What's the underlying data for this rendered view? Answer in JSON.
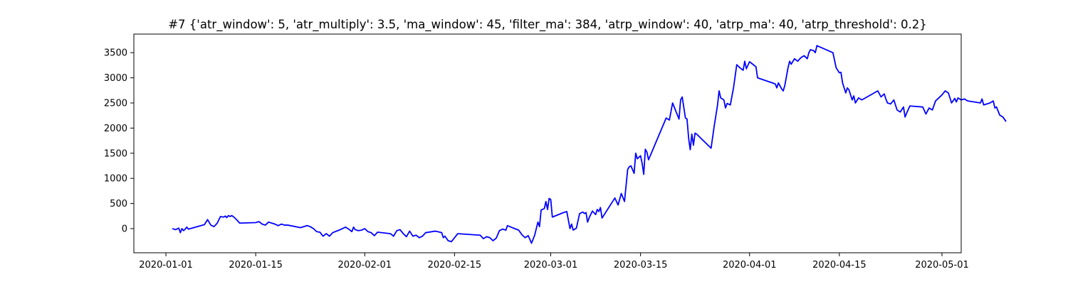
{
  "chart_data": {
    "type": "line",
    "title": "#7 {'atr_window': 5, 'atr_multiply': 3.5, 'ma_window': 45, 'filter_ma': 384, 'atrp_window': 40, 'atrp_ma': 40, 'atrp_threshold': 0.2}",
    "xlabel": "",
    "ylabel": "",
    "xlim": [
      "2019-12-27",
      "2020-05-04"
    ],
    "ylim": [
      -480,
      3870
    ],
    "x_ticks": [
      "2020-01-01",
      "2020-01-15",
      "2020-02-01",
      "2020-02-15",
      "2020-03-01",
      "2020-03-15",
      "2020-04-01",
      "2020-04-15",
      "2020-05-01"
    ],
    "y_ticks": [
      0,
      500,
      1000,
      1500,
      2000,
      2500,
      3000,
      3500
    ],
    "grid": false,
    "legend": "none",
    "series": [
      {
        "color": "#0000ff",
        "points": [
          [
            "2020-01-02",
            0
          ],
          [
            "2020-01-02T12:00",
            -20
          ],
          [
            "2020-01-03",
            10
          ],
          [
            "2020-01-03T06:00",
            -80
          ],
          [
            "2020-01-03T12:00",
            0
          ],
          [
            "2020-01-03T18:00",
            -40
          ],
          [
            "2020-01-04",
            -10
          ],
          [
            "2020-01-04T06:00",
            30
          ],
          [
            "2020-01-04T12:00",
            -10
          ],
          [
            "2020-01-07",
            80
          ],
          [
            "2020-01-07T12:00",
            180
          ],
          [
            "2020-01-08",
            70
          ],
          [
            "2020-01-08T12:00",
            40
          ],
          [
            "2020-01-09",
            110
          ],
          [
            "2020-01-09T12:00",
            240
          ],
          [
            "2020-01-10",
            230
          ],
          [
            "2020-01-10T06:00",
            250
          ],
          [
            "2020-01-10T12:00",
            220
          ],
          [
            "2020-01-10T18:00",
            260
          ],
          [
            "2020-01-11",
            240
          ],
          [
            "2020-01-11T06:00",
            260
          ],
          [
            "2020-01-11T12:00",
            240
          ],
          [
            "2020-01-12",
            180
          ],
          [
            "2020-01-12T12:00",
            110
          ],
          [
            "2020-01-15",
            120
          ],
          [
            "2020-01-15T12:00",
            140
          ],
          [
            "2020-01-16",
            90
          ],
          [
            "2020-01-16T12:00",
            70
          ],
          [
            "2020-01-17",
            130
          ],
          [
            "2020-01-17T12:00",
            110
          ],
          [
            "2020-01-18",
            90
          ],
          [
            "2020-01-18T12:00",
            60
          ],
          [
            "2020-01-19",
            90
          ],
          [
            "2020-01-19T12:00",
            70
          ],
          [
            "2020-01-20",
            70
          ],
          [
            "2020-01-22",
            20
          ],
          [
            "2020-01-23",
            60
          ],
          [
            "2020-01-23T12:00",
            40
          ],
          [
            "2020-01-24",
            0
          ],
          [
            "2020-01-24T12:00",
            -60
          ],
          [
            "2020-01-25",
            -70
          ],
          [
            "2020-01-25T12:00",
            -150
          ],
          [
            "2020-01-26",
            -100
          ],
          [
            "2020-01-26T12:00",
            -150
          ],
          [
            "2020-01-27",
            -80
          ],
          [
            "2020-01-28",
            -30
          ],
          [
            "2020-01-28T12:00",
            0
          ],
          [
            "2020-01-29",
            30
          ],
          [
            "2020-01-29T12:00",
            -10
          ],
          [
            "2020-01-30",
            -60
          ],
          [
            "2020-01-30T06:00",
            30
          ],
          [
            "2020-01-30T12:00",
            -20
          ],
          [
            "2020-01-31",
            -40
          ],
          [
            "2020-01-31T12:00",
            -30
          ],
          [
            "2020-02-01",
            0
          ],
          [
            "2020-02-01T12:00",
            -60
          ],
          [
            "2020-02-02",
            -80
          ],
          [
            "2020-02-02T12:00",
            -140
          ],
          [
            "2020-02-03",
            -70
          ],
          [
            "2020-02-05",
            -100
          ],
          [
            "2020-02-05T12:00",
            -150
          ],
          [
            "2020-02-06",
            -40
          ],
          [
            "2020-02-06T12:00",
            -20
          ],
          [
            "2020-02-07",
            -100
          ],
          [
            "2020-02-07T12:00",
            -160
          ],
          [
            "2020-02-08",
            -50
          ],
          [
            "2020-02-08T12:00",
            -150
          ],
          [
            "2020-02-09",
            -130
          ],
          [
            "2020-02-09T12:00",
            -180
          ],
          [
            "2020-02-10",
            -150
          ],
          [
            "2020-02-10T12:00",
            -80
          ],
          [
            "2020-02-12",
            -50
          ],
          [
            "2020-02-13",
            -80
          ],
          [
            "2020-02-13T06:00",
            -180
          ],
          [
            "2020-02-13T12:00",
            -150
          ],
          [
            "2020-02-14",
            -240
          ],
          [
            "2020-02-14T12:00",
            -260
          ],
          [
            "2020-02-15",
            -180
          ],
          [
            "2020-02-15T12:00",
            -100
          ],
          [
            "2020-02-19",
            -130
          ],
          [
            "2020-02-19T12:00",
            -200
          ],
          [
            "2020-02-20",
            -160
          ],
          [
            "2020-02-20T12:00",
            -180
          ],
          [
            "2020-02-21",
            -240
          ],
          [
            "2020-02-21T12:00",
            -190
          ],
          [
            "2020-02-22",
            -40
          ],
          [
            "2020-02-22T12:00",
            -10
          ],
          [
            "2020-02-23",
            -30
          ],
          [
            "2020-02-23T06:00",
            60
          ],
          [
            "2020-02-24",
            20
          ],
          [
            "2020-02-25",
            -30
          ],
          [
            "2020-02-25T12:00",
            -120
          ],
          [
            "2020-02-26",
            -180
          ],
          [
            "2020-02-26T12:00",
            -140
          ],
          [
            "2020-02-27",
            -290
          ],
          [
            "2020-02-27T12:00",
            -130
          ],
          [
            "2020-02-28",
            130
          ],
          [
            "2020-02-28T06:00",
            40
          ],
          [
            "2020-02-28T12:00",
            370
          ],
          [
            "2020-02-29",
            400
          ],
          [
            "2020-02-29T06:00",
            540
          ],
          [
            "2020-02-29T12:00",
            380
          ],
          [
            "2020-02-29T18:00",
            600
          ],
          [
            "2020-03-01",
            580
          ],
          [
            "2020-03-01T06:00",
            230
          ],
          [
            "2020-03-03",
            320
          ],
          [
            "2020-03-03T12:00",
            340
          ],
          [
            "2020-03-04",
            0
          ],
          [
            "2020-03-04T06:00",
            90
          ],
          [
            "2020-03-04T12:00",
            -30
          ],
          [
            "2020-03-05",
            10
          ],
          [
            "2020-03-05T12:00",
            300
          ],
          [
            "2020-03-06",
            330
          ],
          [
            "2020-03-06T06:00",
            300
          ],
          [
            "2020-03-06T12:00",
            320
          ],
          [
            "2020-03-06T18:00",
            130
          ],
          [
            "2020-03-07",
            220
          ],
          [
            "2020-03-07T12:00",
            350
          ],
          [
            "2020-03-08",
            280
          ],
          [
            "2020-03-08T06:00",
            380
          ],
          [
            "2020-03-08T12:00",
            340
          ],
          [
            "2020-03-08T18:00",
            420
          ],
          [
            "2020-03-09",
            210
          ],
          [
            "2020-03-11",
            610
          ],
          [
            "2020-03-11T12:00",
            470
          ],
          [
            "2020-03-12",
            700
          ],
          [
            "2020-03-12T12:00",
            540
          ],
          [
            "2020-03-13",
            1180
          ],
          [
            "2020-03-13T06:00",
            1230
          ],
          [
            "2020-03-13T12:00",
            1250
          ],
          [
            "2020-03-14",
            1100
          ],
          [
            "2020-03-14T06:00",
            1500
          ],
          [
            "2020-03-14T12:00",
            1390
          ],
          [
            "2020-03-15",
            1450
          ],
          [
            "2020-03-15T06:00",
            1300
          ],
          [
            "2020-03-15T12:00",
            1080
          ],
          [
            "2020-03-15T18:00",
            1580
          ],
          [
            "2020-03-16",
            1520
          ],
          [
            "2020-03-16T06:00",
            1370
          ],
          [
            "2020-03-19",
            2200
          ],
          [
            "2020-03-19T12:00",
            2160
          ],
          [
            "2020-03-20",
            2500
          ],
          [
            "2020-03-21",
            2180
          ],
          [
            "2020-03-21T06:00",
            2560
          ],
          [
            "2020-03-21T12:00",
            2620
          ],
          [
            "2020-03-22",
            2200
          ],
          [
            "2020-03-22T06:00",
            2180
          ],
          [
            "2020-03-22T12:00",
            1800
          ],
          [
            "2020-03-22T18:00",
            1570
          ],
          [
            "2020-03-23",
            1880
          ],
          [
            "2020-03-23T06:00",
            1660
          ],
          [
            "2020-03-23T12:00",
            1900
          ],
          [
            "2020-03-23T18:00",
            1880
          ],
          [
            "2020-03-26",
            1600
          ],
          [
            "2020-03-26T12:00",
            2050
          ],
          [
            "2020-03-27",
            2450
          ],
          [
            "2020-03-27T06:00",
            2740
          ],
          [
            "2020-03-27T12:00",
            2600
          ],
          [
            "2020-03-28",
            2560
          ],
          [
            "2020-03-28T06:00",
            2400
          ],
          [
            "2020-03-28T12:00",
            2490
          ],
          [
            "2020-03-29",
            2460
          ],
          [
            "2020-03-29T12:00",
            2800
          ],
          [
            "2020-03-30",
            3260
          ],
          [
            "2020-03-30T12:00",
            3200
          ],
          [
            "2020-03-31",
            3150
          ],
          [
            "2020-03-31T06:00",
            3330
          ],
          [
            "2020-03-31T12:00",
            3180
          ],
          [
            "2020-04-01",
            3320
          ],
          [
            "2020-04-01T12:00",
            3270
          ],
          [
            "2020-04-02",
            3220
          ],
          [
            "2020-04-02T06:00",
            3000
          ],
          [
            "2020-04-05",
            2880
          ],
          [
            "2020-04-05T06:00",
            2800
          ],
          [
            "2020-04-05T12:00",
            2900
          ],
          [
            "2020-04-06",
            2780
          ],
          [
            "2020-04-06T06:00",
            2740
          ],
          [
            "2020-04-06T12:00",
            2850
          ],
          [
            "2020-04-07",
            3200
          ],
          [
            "2020-04-07T06:00",
            3330
          ],
          [
            "2020-04-07T12:00",
            3270
          ],
          [
            "2020-04-08",
            3380
          ],
          [
            "2020-04-08T12:00",
            3330
          ],
          [
            "2020-04-09",
            3400
          ],
          [
            "2020-04-09T12:00",
            3440
          ],
          [
            "2020-04-10",
            3380
          ],
          [
            "2020-04-10T06:00",
            3500
          ],
          [
            "2020-04-10T12:00",
            3560
          ],
          [
            "2020-04-11",
            3540
          ],
          [
            "2020-04-11T06:00",
            3500
          ],
          [
            "2020-04-11T12:00",
            3640
          ],
          [
            "2020-04-14",
            3500
          ],
          [
            "2020-04-14T12:00",
            3200
          ],
          [
            "2020-04-15",
            3100
          ],
          [
            "2020-04-15T06:00",
            3110
          ],
          [
            "2020-04-15T12:00",
            2900
          ],
          [
            "2020-04-16",
            2700
          ],
          [
            "2020-04-16T06:00",
            2800
          ],
          [
            "2020-04-16T12:00",
            2760
          ],
          [
            "2020-04-17",
            2560
          ],
          [
            "2020-04-17T06:00",
            2640
          ],
          [
            "2020-04-17T12:00",
            2500
          ],
          [
            "2020-04-18",
            2600
          ],
          [
            "2020-04-18T12:00",
            2560
          ],
          [
            "2020-04-21",
            2740
          ],
          [
            "2020-04-21T12:00",
            2620
          ],
          [
            "2020-04-22",
            2680
          ],
          [
            "2020-04-22T06:00",
            2580
          ],
          [
            "2020-04-22T12:00",
            2500
          ],
          [
            "2020-04-23",
            2480
          ],
          [
            "2020-04-23T12:00",
            2560
          ],
          [
            "2020-04-24",
            2360
          ],
          [
            "2020-04-24T12:00",
            2320
          ],
          [
            "2020-04-25",
            2420
          ],
          [
            "2020-04-25T06:00",
            2220
          ],
          [
            "2020-04-25T12:00",
            2300
          ],
          [
            "2020-04-26",
            2440
          ],
          [
            "2020-04-28",
            2420
          ],
          [
            "2020-04-28T12:00",
            2280
          ],
          [
            "2020-04-29",
            2400
          ],
          [
            "2020-04-29T12:00",
            2360
          ],
          [
            "2020-04-30",
            2540
          ],
          [
            "2020-05-01",
            2660
          ],
          [
            "2020-05-01T12:00",
            2740
          ],
          [
            "2020-05-02",
            2700
          ],
          [
            "2020-05-02T12:00",
            2500
          ],
          [
            "2020-05-03",
            2590
          ],
          [
            "2020-05-03T06:00",
            2520
          ],
          [
            "2020-05-03T12:00",
            2600
          ],
          [
            "2020-05-04",
            2560
          ],
          [
            "2020-05-04T12:00",
            2580
          ],
          [
            "2020-05-05",
            2540
          ],
          [
            "2020-05-07",
            2500
          ],
          [
            "2020-05-07T06:00",
            2580
          ],
          [
            "2020-05-07T12:00",
            2460
          ],
          [
            "2020-05-08",
            2480
          ],
          [
            "2020-05-08T12:00",
            2500
          ],
          [
            "2020-05-09",
            2540
          ],
          [
            "2020-05-09T06:00",
            2400
          ],
          [
            "2020-05-09T12:00",
            2420
          ],
          [
            "2020-05-10",
            2260
          ],
          [
            "2020-05-10T12:00",
            2220
          ],
          [
            "2020-05-11",
            2130
          ]
        ]
      }
    ]
  }
}
